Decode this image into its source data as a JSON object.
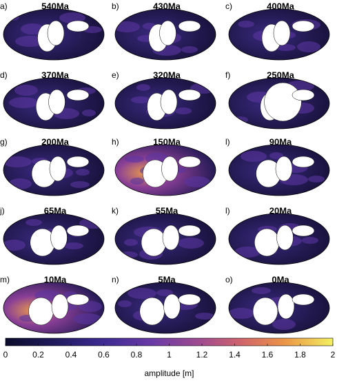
{
  "panels": [
    {
      "label": "a)",
      "title": "540Ma"
    },
    {
      "label": "b)",
      "title": "430Ma"
    },
    {
      "label": "c)",
      "title": "400Ma"
    },
    {
      "label": "d)",
      "title": "370Ma"
    },
    {
      "label": "e)",
      "title": "320Ma"
    },
    {
      "label": "f)",
      "title": "250Ma"
    },
    {
      "label": "g)",
      "title": "200Ma"
    },
    {
      "label": "h)",
      "title": "150Ma"
    },
    {
      "label": "l)",
      "title": "90Ma"
    },
    {
      "label": "j)",
      "title": "65Ma"
    },
    {
      "label": "k)",
      "title": "55Ma"
    },
    {
      "label": "l)",
      "title": "20Ma"
    },
    {
      "label": "m)",
      "title": "10Ma"
    },
    {
      "label": "n)",
      "title": "5Ma"
    },
    {
      "label": "o)",
      "title": "0Ma"
    }
  ],
  "colorbar": {
    "label": "amplitude [m]",
    "lim": [
      0,
      2
    ],
    "ticks": [
      0,
      0.2,
      0.4,
      0.6,
      0.8,
      1,
      1.2,
      1.4,
      1.6,
      1.8,
      2
    ]
  }
}
